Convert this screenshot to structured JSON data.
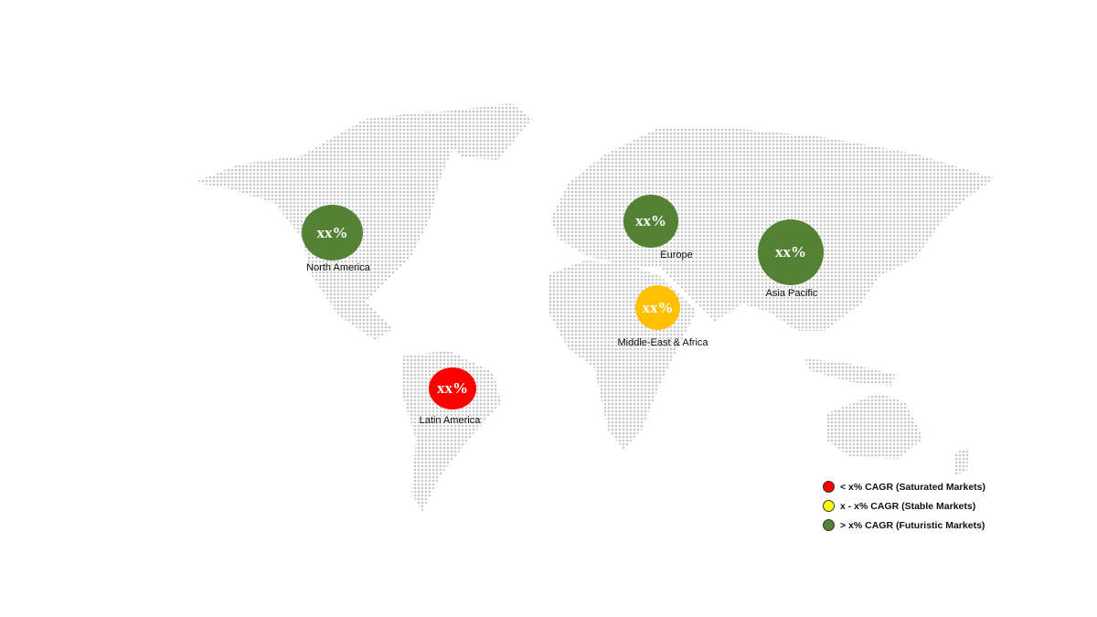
{
  "regions": [
    {
      "name": "North America",
      "value": "xx%",
      "color": "#548235"
    },
    {
      "name": "Europe",
      "value": "xx%",
      "color": "#548235"
    },
    {
      "name": "Asia Pacific",
      "value": "xx%",
      "color": "#548235"
    },
    {
      "name": "Middle-East & Africa",
      "value": "xx%",
      "color": "#FFC000"
    },
    {
      "name": "Latin America",
      "value": "xx%",
      "color": "#FF0000"
    }
  ],
  "legend": [
    {
      "label": "< x% CAGR (Saturated Markets)",
      "color": "#FF0000"
    },
    {
      "label": "x - x% CAGR (Stable Markets)",
      "color": "#FFFF00"
    },
    {
      "label": "> x% CAGR (Futuristic Markets)",
      "color": "#548235"
    }
  ],
  "map_dot_color": "#c8c8c8"
}
